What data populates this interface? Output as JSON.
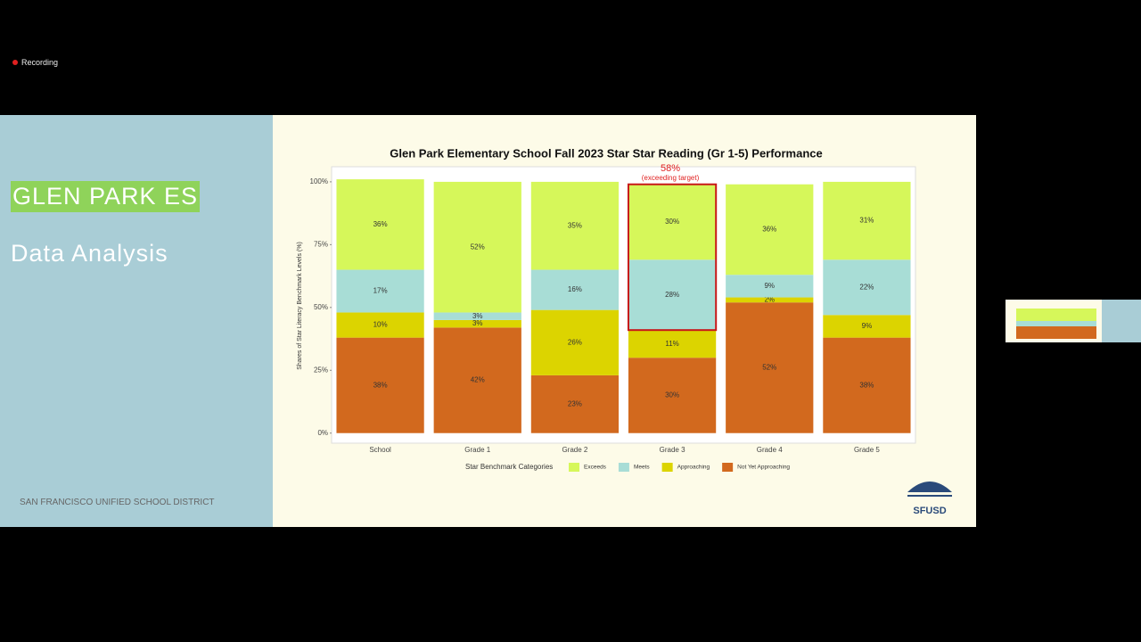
{
  "recording": "Recording",
  "slide": {
    "school_name": "GLEN PARK ES",
    "subtitle": "Data Analysis",
    "district": "SAN FRANCISCO UNIFIED SCHOOL DISTRICT",
    "logo_text": "SFUSD"
  },
  "chart_data": {
    "type": "stacked_bar",
    "title": "Glen Park Elementary School Fall 2023 Star Star Reading (Gr 1-5) Performance",
    "y_label": "Shares of Star Literacy Benchmark Levels (%)",
    "legend_title": "Star Benchmark Categories",
    "legend_position": "bottom",
    "grid": false,
    "annotation": {
      "text": "58%",
      "subtext": "(exceeding target)"
    },
    "categories": [
      "School",
      "Grade 1",
      "Grade 2",
      "Grade 3",
      "Grade 4",
      "Grade 5"
    ],
    "ylim": [
      -4,
      106
    ],
    "yticks": [
      {
        "value": 0,
        "label": "0%"
      },
      {
        "value": 25,
        "label": "25%"
      },
      {
        "value": 50,
        "label": "50%"
      },
      {
        "value": 75,
        "label": "75%"
      },
      {
        "value": 100,
        "label": "100%"
      }
    ],
    "series": [
      {
        "name": "Not Yet Approaching",
        "color": "#d2691e",
        "values": [
          38,
          42,
          23,
          30,
          52,
          38
        ],
        "value_labels": [
          "38%",
          "42%",
          "23%",
          "30%",
          "52%",
          "38%"
        ]
      },
      {
        "name": "Approaching",
        "color": "#dcd400",
        "values": [
          10,
          3,
          26,
          11,
          2,
          9
        ],
        "value_labels": [
          "10%",
          "3%",
          "26%",
          "11%",
          "2%",
          "9%"
        ]
      },
      {
        "name": "Meets",
        "color": "#a8ddd6",
        "values": [
          17,
          3,
          16,
          28,
          9,
          22
        ],
        "value_labels": [
          "17%",
          "3%",
          "16%",
          "28%",
          "9%",
          "22%"
        ]
      },
      {
        "name": "Exceeds",
        "color": "#d6f75a",
        "values": [
          36,
          52,
          35,
          30,
          36,
          31
        ],
        "value_labels": [
          "36%",
          "52%",
          "35%",
          "30%",
          "36%",
          "31%"
        ]
      }
    ]
  }
}
